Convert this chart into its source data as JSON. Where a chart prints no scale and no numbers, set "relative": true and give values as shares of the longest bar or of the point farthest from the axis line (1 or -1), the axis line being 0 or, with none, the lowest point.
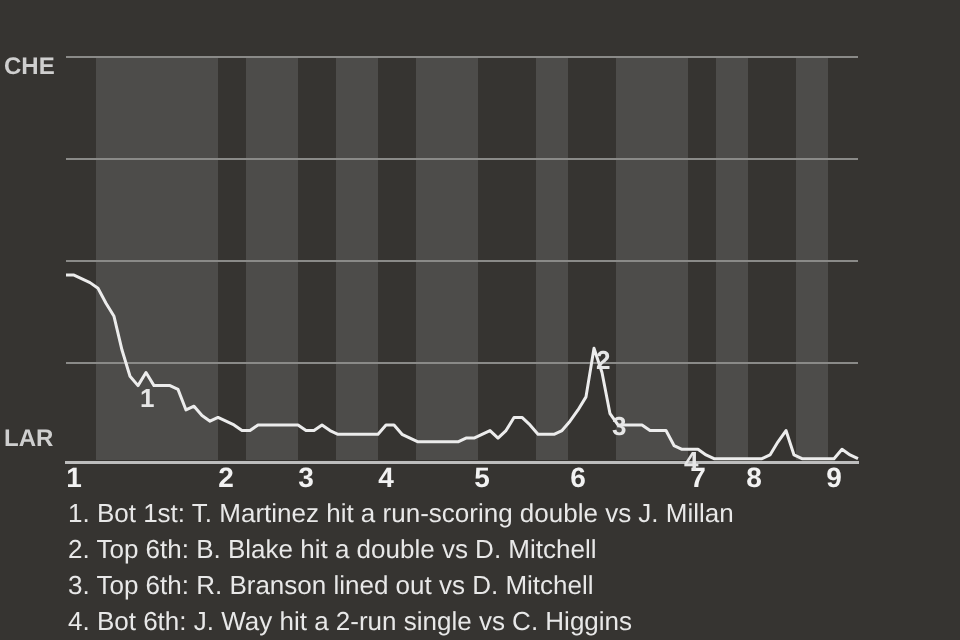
{
  "chart_data": {
    "type": "line",
    "relative": true,
    "categories": [
      null,
      "1",
      null,
      null,
      null,
      null,
      null,
      null,
      null,
      null,
      null,
      null,
      null,
      null,
      null,
      null,
      null,
      null,
      null,
      null,
      "2",
      null,
      null,
      null,
      null,
      null,
      null,
      null,
      null,
      null,
      "3",
      null,
      null,
      null,
      null,
      null,
      null,
      null,
      null,
      null,
      "4",
      null,
      null,
      null,
      null,
      null,
      null,
      null,
      null,
      null,
      null,
      null,
      "5",
      null,
      null,
      null,
      null,
      null,
      null,
      null,
      null,
      null,
      null,
      null,
      "6",
      null,
      null,
      null,
      null,
      null,
      null,
      null,
      null,
      null,
      null,
      null,
      null,
      null,
      null,
      "7",
      null,
      null,
      null,
      null,
      null,
      null,
      "8",
      null,
      null,
      null,
      null,
      null,
      null,
      null,
      null,
      null,
      "9",
      null,
      null,
      null
    ],
    "series": [
      {
        "color": "#ececec",
        "values": [
          1,
          1,
          0.98,
          0.96,
          0.93,
          0.85,
          0.78,
          0.6,
          0.46,
          0.41,
          0.48,
          0.41,
          0.41,
          0.41,
          0.39,
          0.28,
          0.3,
          0.25,
          0.22,
          0.24,
          0.22,
          0.2,
          0.17,
          0.17,
          0.2,
          0.2,
          0.2,
          0.2,
          0.2,
          0.2,
          0.17,
          0.17,
          0.2,
          0.17,
          0.15,
          0.15,
          0.15,
          0.15,
          0.15,
          0.15,
          0.2,
          0.2,
          0.15,
          0.13,
          0.11,
          0.11,
          0.11,
          0.11,
          0.11,
          0.11,
          0.13,
          0.13,
          0.15,
          0.17,
          0.13,
          0.17,
          0.24,
          0.24,
          0.2,
          0.15,
          0.15,
          0.15,
          0.17,
          0.22,
          0.28,
          0.35,
          0.61,
          0.48,
          0.26,
          0.2,
          0.2,
          0.2,
          0.2,
          0.17,
          0.17,
          0.17,
          0.09,
          0.07,
          0.07,
          0.07,
          0.04,
          0.02,
          0.02,
          0.02,
          0.02,
          0.02,
          0.02,
          0.02,
          0.04,
          0.11,
          0.17,
          0.04,
          0.02,
          0.02,
          0.02,
          0.02,
          0.02,
          0.07,
          0.04,
          0.02
        ]
      }
    ],
    "ref_lines": [
      {
        "axis": "y",
        "value": 0.54,
        "color": "#8a8a88"
      },
      {
        "axis": "y",
        "value": 1.08,
        "color": "#8a8a88"
      },
      {
        "axis": "y",
        "value": 1.63,
        "color": "#8a8a88"
      },
      {
        "axis": "y",
        "value": 2.17,
        "color": "#8a8a88"
      }
    ],
    "marker": "none",
    "annotations": [
      "CHE",
      "LAR",
      {
        "text": "1",
        "y": 0.41
      },
      {
        "text": "2",
        "y": 0.61
      },
      {
        "text": "3",
        "y": 0.26
      },
      {
        "text": "4",
        "y": 0.07
      },
      "1. Bot 1st: T. Martinez hit a run-scoring double vs J. Millan",
      "2. Top 6th: B. Blake hit a double vs D. Mitchell",
      "3. Top 6th: R. Branson lined out vs D. Mitchell",
      "4. Bot 6th: J. Way hit a 2-run single vs C. Higgins"
    ]
  }
}
